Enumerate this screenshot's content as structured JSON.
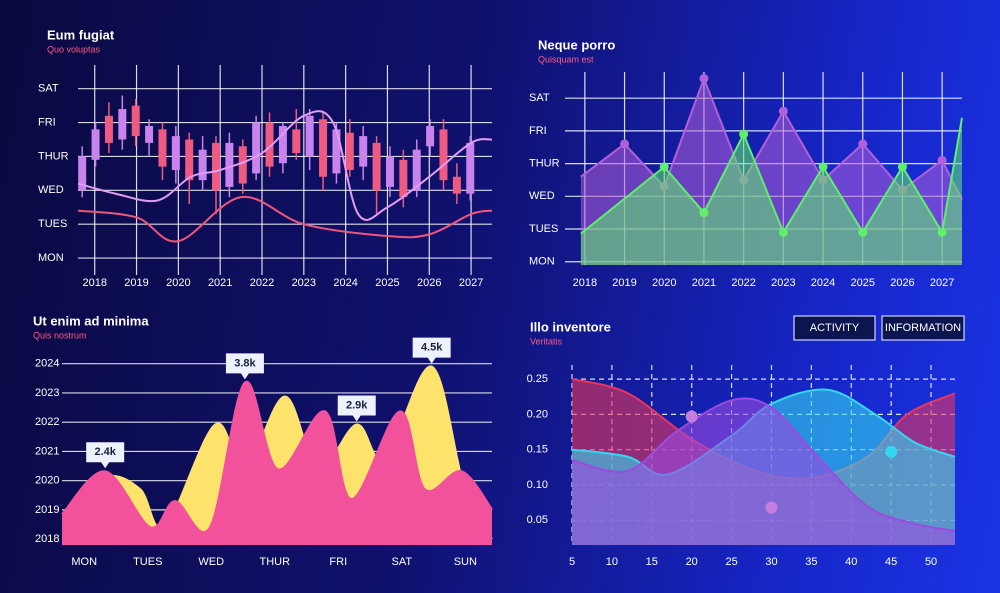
{
  "chart_data": [
    {
      "type": "candlestick",
      "title": "Eum fugiat",
      "subtitle": "Quo voluptas",
      "x": [
        2017.7,
        2018.02,
        2018.34,
        2018.66,
        2018.98,
        2019.3,
        2019.62,
        2019.94,
        2020.26,
        2020.58,
        2020.9,
        2021.22,
        2021.54,
        2021.86,
        2022.18,
        2022.5,
        2022.82,
        2023.14,
        2023.46,
        2023.78,
        2024.1,
        2024.42,
        2024.74,
        2025.06,
        2025.38,
        2025.7,
        2026.02,
        2026.34,
        2026.66,
        2026.98
      ],
      "open": [
        2.0,
        2.9,
        4.2,
        3.5,
        4.5,
        3.4,
        3.8,
        2.6,
        3.5,
        2.3,
        3.4,
        2.1,
        3.3,
        2.5,
        4.0,
        2.8,
        3.8,
        3.0,
        4.1,
        2.5,
        3.7,
        2.7,
        3.4,
        2.1,
        2.9,
        2.0,
        3.3,
        3.8,
        2.4,
        1.9
      ],
      "high": [
        3.3,
        4.0,
        4.6,
        4.8,
        4.7,
        4.1,
        4.0,
        3.9,
        3.7,
        3.6,
        3.6,
        3.7,
        3.5,
        4.2,
        4.3,
        4.0,
        4.4,
        4.4,
        4.3,
        4.0,
        4.1,
        3.9,
        3.6,
        3.3,
        3.2,
        3.5,
        4.1,
        4.1,
        2.8,
        3.6
      ],
      "low": [
        1.8,
        2.7,
        3.1,
        3.2,
        3.3,
        3.0,
        2.3,
        2.2,
        1.6,
        2.0,
        1.3,
        1.8,
        1.9,
        2.3,
        2.4,
        2.5,
        2.9,
        2.6,
        2.0,
        2.2,
        2.4,
        2.3,
        1.3,
        1.8,
        1.5,
        1.8,
        3.0,
        2.0,
        1.6,
        1.7
      ],
      "close": [
        3.0,
        3.8,
        3.4,
        4.4,
        3.6,
        3.9,
        2.7,
        3.6,
        2.3,
        3.2,
        2.0,
        3.4,
        2.2,
        4.0,
        2.7,
        3.9,
        3.1,
        4.2,
        2.4,
        3.8,
        2.6,
        3.6,
        2.0,
        3.0,
        1.8,
        3.2,
        3.9,
        2.3,
        1.9,
        3.4
      ],
      "up_color": "#c883ec",
      "down_color": "#ee5a82",
      "series": [
        {
          "color": "#e29cf0",
          "x": [
            2017.6,
            2018.5,
            2019.5,
            2020.3,
            2021,
            2022,
            2023,
            2023.7,
            2024.3,
            2025,
            2026,
            2027,
            2027.5
          ],
          "values": [
            2.2,
            1.9,
            1.7,
            2.4,
            2.6,
            3.1,
            4.2,
            4.0,
            1.3,
            1.5,
            2.4,
            3.4,
            3.5
          ]
        },
        {
          "color": "#f0567a",
          "x": [
            2017.6,
            2019,
            2020,
            2021.5,
            2023,
            2025,
            2026,
            2027,
            2027.5
          ],
          "values": [
            1.4,
            1.2,
            0.5,
            1.8,
            1.0,
            0.65,
            0.7,
            1.3,
            1.4
          ]
        }
      ],
      "smooth": true,
      "xlim": [
        2017.6,
        2027.5
      ],
      "xticks": [
        2018,
        2019,
        2020,
        2021,
        2022,
        2023,
        2024,
        2025,
        2026,
        2027
      ],
      "ylim": [
        -0.5,
        5.7
      ],
      "yticks": [
        {
          "value": 0,
          "label": "MON"
        },
        {
          "value": 1,
          "label": "TUES"
        },
        {
          "value": 2,
          "label": "WED"
        },
        {
          "value": 3,
          "label": "THUR"
        },
        {
          "value": 4,
          "label": "FRI"
        },
        {
          "value": 5,
          "label": "SAT"
        }
      ],
      "grid": "both"
    },
    {
      "type": "area",
      "title": "Neque porro",
      "subtitle": "Quisquam est",
      "series": [
        {
          "color": "#b35fd8",
          "x": [
            2017.9,
            2019,
            2020,
            2021,
            2022,
            2023,
            2024,
            2025,
            2026,
            2027,
            2027.5
          ],
          "values": [
            2.6,
            3.6,
            2.3,
            5.6,
            2.5,
            4.6,
            2.5,
            3.6,
            2.2,
            3.1,
            1.9
          ]
        },
        {
          "color": "#5ef06c",
          "x": [
            2017.9,
            2020,
            2021,
            2022,
            2023,
            2024,
            2025,
            2026,
            2027,
            2027.5
          ],
          "values": [
            0.86,
            2.9,
            1.5,
            3.9,
            0.9,
            2.9,
            0.9,
            2.9,
            0.9,
            4.4
          ]
        }
      ],
      "point_markers": true,
      "smooth": false,
      "xlim": [
        2017.5,
        2027.5
      ],
      "xticks": [
        2018,
        2019,
        2020,
        2021,
        2022,
        2023,
        2024,
        2025,
        2026,
        2027
      ],
      "ylim": [
        -0.1,
        5.8
      ],
      "yticks": [
        {
          "value": 0,
          "label": "MON"
        },
        {
          "value": 1,
          "label": "TUES"
        },
        {
          "value": 2,
          "label": "WED"
        },
        {
          "value": 3,
          "label": "THUR"
        },
        {
          "value": 4,
          "label": "FRI"
        },
        {
          "value": 5,
          "label": "SAT"
        }
      ],
      "grid": "both"
    },
    {
      "type": "area",
      "title": "Ut enim ad minima",
      "subtitle": "Quis nostrum",
      "series": [
        {
          "color": "#fde36c",
          "x": [
            -0.35,
            0.33,
            0.88,
            1.27,
            2.06,
            2.53,
            3.16,
            3.68,
            4.29,
            4.73,
            5.47,
            5.99,
            6.42
          ],
          "values": [
            2018.85,
            2020.12,
            2019.71,
            2018.41,
            2021.92,
            2020.39,
            2022.88,
            2020.39,
            2021.92,
            2020.73,
            2023.9,
            2019.71,
            2018.0
          ]
        },
        {
          "color": "#f2529c",
          "x": [
            -0.35,
            0.33,
            1.04,
            1.43,
            1.98,
            2.53,
            3.05,
            3.79,
            4.21,
            4.97,
            5.36,
            5.94,
            6.42
          ],
          "values": [
            2018.85,
            2020.32,
            2018.41,
            2019.3,
            2018.41,
            2023.36,
            2020.39,
            2022.37,
            2019.37,
            2022.37,
            2019.71,
            2020.32,
            2019.02
          ]
        }
      ],
      "smooth": true,
      "annotations": [
        {
          "label": "2.4k",
          "x": 0.33,
          "y": 2020.32
        },
        {
          "label": "3.8k",
          "x": 2.53,
          "y": 2023.36
        },
        {
          "label": "2.9k",
          "x": 4.29,
          "y": 2021.92
        },
        {
          "label": "4.5k",
          "x": 5.47,
          "y": 2023.9
        }
      ],
      "xlim": [
        -0.35,
        6.42
      ],
      "xticks": [
        {
          "value": 0,
          "label": "MON"
        },
        {
          "value": 1,
          "label": "TUES"
        },
        {
          "value": 2,
          "label": "WED"
        },
        {
          "value": 3,
          "label": "THUR"
        },
        {
          "value": 4,
          "label": "FRI"
        },
        {
          "value": 5,
          "label": "SAT"
        },
        {
          "value": 6,
          "label": "SUN"
        }
      ],
      "ylim": [
        2017.8,
        2024.4
      ],
      "yticks": [
        2018,
        2019,
        2020,
        2021,
        2022,
        2023,
        2024
      ],
      "grid": "y"
    },
    {
      "type": "area",
      "title": "Illo inventore",
      "subtitle": "Veritatis",
      "buttons": [
        "ACTIVITY",
        "INFORMATION"
      ],
      "series": [
        {
          "color": "#e8355e",
          "x": [
            5,
            12,
            20,
            28,
            35,
            42,
            47,
            53
          ],
          "values": [
            0.25,
            0.23,
            0.165,
            0.12,
            0.11,
            0.14,
            0.2,
            0.23
          ]
        },
        {
          "color": "#33d8f0",
          "x": [
            5,
            12,
            17,
            25,
            30,
            37,
            43,
            48,
            53
          ],
          "values": [
            0.15,
            0.14,
            0.115,
            0.17,
            0.215,
            0.235,
            0.2,
            0.16,
            0.14
          ]
        },
        {
          "color": "#9b4be0",
          "x": [
            5,
            12,
            18,
            25,
            30,
            35,
            42,
            48,
            53
          ],
          "values": [
            0.135,
            0.12,
            0.175,
            0.22,
            0.21,
            0.15,
            0.07,
            0.045,
            0.035
          ]
        }
      ],
      "smooth": true,
      "highlights": [
        {
          "x": 20,
          "y": 0.197,
          "color": "#c77de0"
        },
        {
          "x": 30,
          "y": 0.068,
          "color": "#c77de0"
        },
        {
          "x": 45,
          "y": 0.147,
          "color": "#33d8f0"
        }
      ],
      "xlim": [
        5,
        53
      ],
      "xticks": [
        5,
        10,
        15,
        20,
        25,
        30,
        35,
        40,
        45,
        50
      ],
      "ylim": [
        0.015,
        0.27
      ],
      "yticks": [
        0.05,
        {
          "value": 0.1,
          "label": "0.10"
        },
        0.15,
        {
          "value": 0.2,
          "label": "0.20"
        },
        0.25
      ],
      "grid": "both",
      "grid_style": "dashed"
    }
  ]
}
